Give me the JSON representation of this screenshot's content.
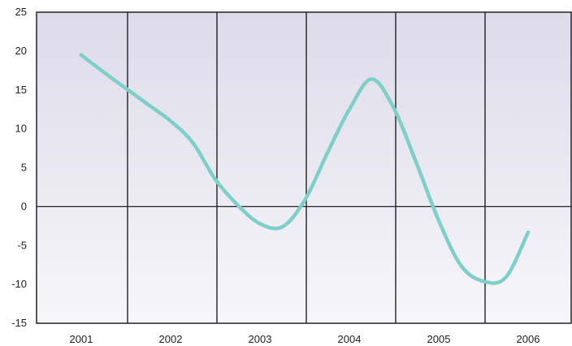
{
  "chart_data": {
    "type": "line",
    "title": "",
    "xlabel": "",
    "ylabel": "",
    "categories": [
      "2001",
      "2002",
      "2003",
      "2004",
      "2005",
      "2006"
    ],
    "ylim": [
      -15,
      25
    ],
    "yticks": [
      25,
      20,
      15,
      10,
      5,
      0,
      -5,
      -10,
      -15
    ],
    "ytick_labels": [
      "25",
      "20",
      "15",
      "10",
      "5",
      "0",
      "-5",
      "-10",
      "-15"
    ],
    "grid": "vertical lines between years; horizontal zero line",
    "series": [
      {
        "color": "#7fcfc9",
        "x": [
          2001.0,
          2001.25,
          2001.5,
          2001.75,
          2002.0,
          2002.25,
          2002.5,
          2002.75,
          2003.0,
          2003.25,
          2003.5,
          2003.75,
          2004.0,
          2004.25,
          2004.5,
          2004.75,
          2005.0,
          2005.25,
          2005.5,
          2005.75,
          2006.0
        ],
        "y": [
          19.5,
          17.3,
          15.2,
          13.1,
          11.0,
          8.2,
          3.5,
          0.2,
          -2.2,
          -2.6,
          0.8,
          6.8,
          12.5,
          16.4,
          12.6,
          5.6,
          -1.8,
          -7.6,
          -9.6,
          -9.1,
          -3.3
        ]
      }
    ]
  },
  "style": {
    "plot_bg_top": "#dddbe9",
    "plot_bg_bottom": "#f6f6fa",
    "line_color": "#7fcfc9",
    "grid_color": "#222222"
  }
}
